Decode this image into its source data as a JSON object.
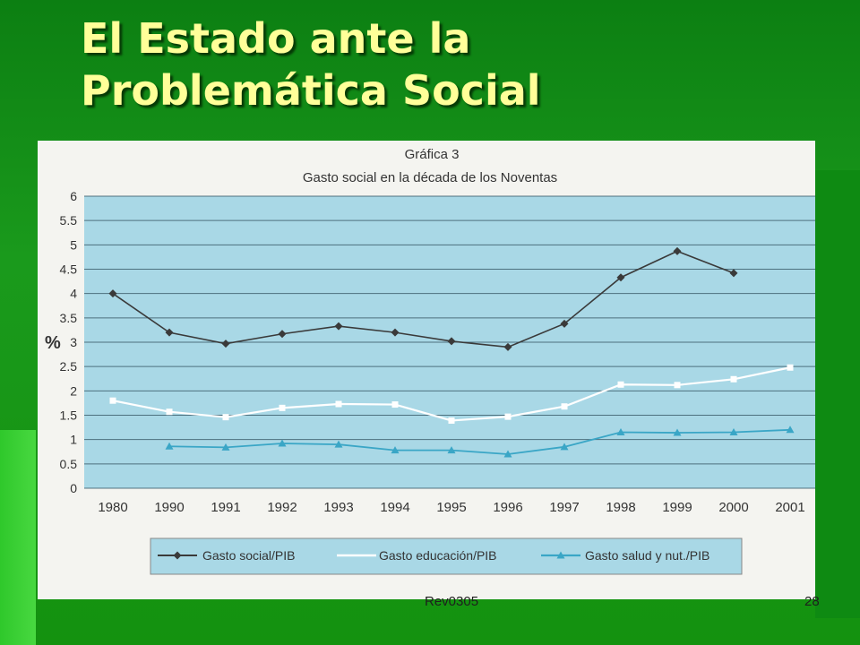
{
  "slide": {
    "title_line1": "El Estado ante la",
    "title_line2": "Problemática Social",
    "footer_left": "Rev0305",
    "page_number": "28"
  },
  "colors": {
    "background": "#14920f",
    "title": "#ffff99",
    "plot_area": "#a9d8e6",
    "series_social": "#3a3a3a",
    "series_educacion": "#ffffff",
    "series_salud": "#3aa6c6"
  },
  "chart_data": {
    "type": "line",
    "title": "Gráfica 3",
    "subtitle": "Gasto social en la década de los Noventas",
    "xlabel": "",
    "ylabel": "%",
    "ylim": [
      0,
      6
    ],
    "yticks": [
      "0",
      "0.5",
      "1",
      "1.5",
      "2",
      "2.5",
      "3",
      "3.5",
      "4",
      "4.5",
      "5",
      "5.5",
      "6"
    ],
    "grid": true,
    "legend_position": "bottom",
    "categories": [
      "1980",
      "1990",
      "1991",
      "1992",
      "1993",
      "1994",
      "1995",
      "1996",
      "1997",
      "1998",
      "1999",
      "2000",
      "2001"
    ],
    "series": [
      {
        "name": "Gasto social/PIB",
        "marker": "diamond",
        "values": [
          4.0,
          3.2,
          2.97,
          3.17,
          3.33,
          3.2,
          3.02,
          2.9,
          3.38,
          4.33,
          4.87,
          4.42,
          null
        ]
      },
      {
        "name": "Gasto educación/PIB",
        "marker": "square",
        "values": [
          1.8,
          1.57,
          1.46,
          1.65,
          1.73,
          1.72,
          1.39,
          1.47,
          1.68,
          2.13,
          2.12,
          2.24,
          2.48
        ]
      },
      {
        "name": "Gasto salud y nut./PIB",
        "marker": "triangle",
        "values": [
          null,
          0.86,
          0.84,
          0.92,
          0.9,
          0.78,
          0.78,
          0.7,
          0.85,
          1.15,
          1.14,
          1.15,
          1.2
        ]
      }
    ]
  }
}
